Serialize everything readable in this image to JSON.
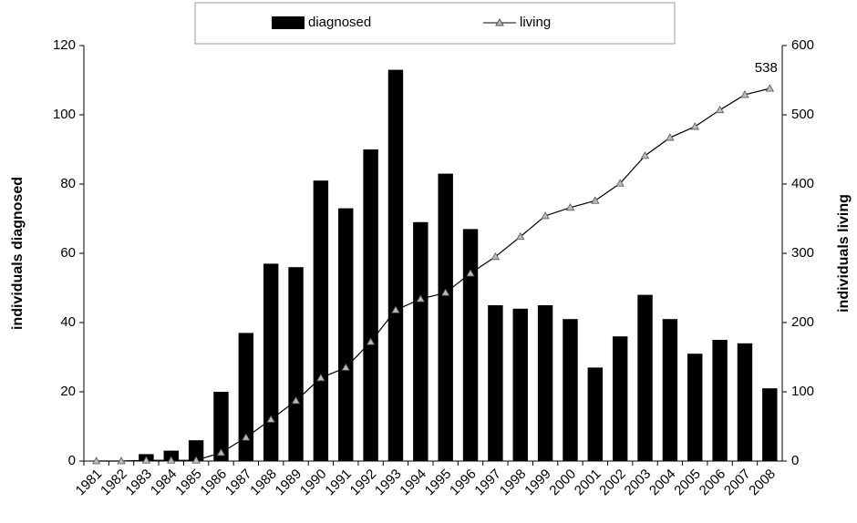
{
  "chart_data": {
    "type": "bar-line",
    "categories": [
      "1981",
      "1982",
      "1983",
      "1984",
      "1985",
      "1986",
      "1987",
      "1988",
      "1989",
      "1990",
      "1991",
      "1992",
      "1993",
      "1994",
      "1995",
      "1996",
      "1997",
      "1998",
      "1999",
      "2000",
      "2001",
      "2002",
      "2003",
      "2004",
      "2005",
      "2006",
      "2007",
      "2008"
    ],
    "series": [
      {
        "name": "diagnosed",
        "type": "bar",
        "color": "#000000",
        "values": [
          0,
          0,
          2,
          3,
          6,
          20,
          37,
          57,
          56,
          81,
          73,
          90,
          113,
          69,
          83,
          67,
          45,
          44,
          45,
          41,
          27,
          36,
          48,
          41,
          31,
          35,
          34,
          21
        ]
      },
      {
        "name": "living",
        "type": "line",
        "axis": "y2",
        "color": "#000000",
        "values": [
          0,
          0,
          1,
          1,
          1,
          12,
          34,
          60,
          87,
          120,
          135,
          172,
          218,
          234,
          243,
          271,
          295,
          324,
          354,
          366,
          376,
          401,
          441,
          467,
          483,
          507,
          529,
          538
        ]
      }
    ],
    "y_label": "individuals diagnosed",
    "y2_label": "individuals living",
    "ylim": [
      0,
      120
    ],
    "yticks": [
      0,
      20,
      40,
      60,
      80,
      100,
      120
    ],
    "y2lim": [
      0,
      600
    ],
    "y2ticks": [
      0,
      100,
      200,
      300,
      400,
      500,
      600
    ],
    "legend": "top"
  }
}
